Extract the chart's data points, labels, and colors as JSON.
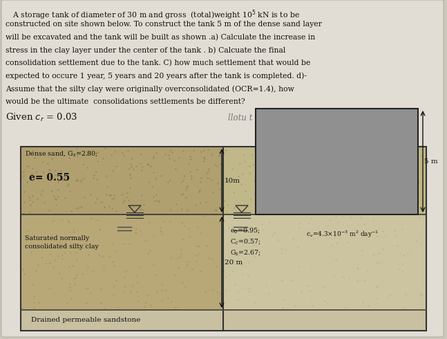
{
  "bg_color": "#ccc8bc",
  "paper_color": "#e2ddd4",
  "sand_color_left": "#b0a070",
  "sand_color_right": "#c0b888",
  "clay_color_left": "#b8a878",
  "clay_color_right": "#ccc4a0",
  "sandstone_color": "#c8c0a0",
  "tank_color": "#909090",
  "title_lines": [
    "   A storage tank of diameter of 30 m and gross  (total)weight 10$^5$ kN is to be",
    "constructed on site shown below. To construct the tank 5 m of the dense sand layer",
    "will be excavated and the tank will be built as shown .a) Calculate the increase in",
    "stress in the clay layer under the center of the tank . b) Calcuate the final",
    "consolidation settlement due to the tank. C) how much settlement that would be",
    "expected to occure 1 year, 5 years and 20 years after the tank is completed. d)-",
    "Assume that the silty clay were originally overconsolidated (OCR=1.4), how",
    "would be the ultimate  consolidations settlements be different?"
  ],
  "given_text": "Given $c_r$ = 0.03",
  "handwritten": "llotu t",
  "dense_sand_label": "Dense sand, G$_s$=2.80;",
  "e_label": "e= 0.55",
  "clay_label": "Saturated normally\nconsolidated silty clay",
  "sandstone_label": "Drained permeable sandstone",
  "clay_props": [
    "e$_0$=0.95;",
    "C$_c$=0.57;",
    "G$_s$=2.67;"
  ],
  "cv_label": "c$_v$=4.3×10$^{-3}$ m$^2$ day$^{-1}$",
  "dim_10m": "10m",
  "dim_20m": "20 m",
  "dim_5m": "5 m"
}
